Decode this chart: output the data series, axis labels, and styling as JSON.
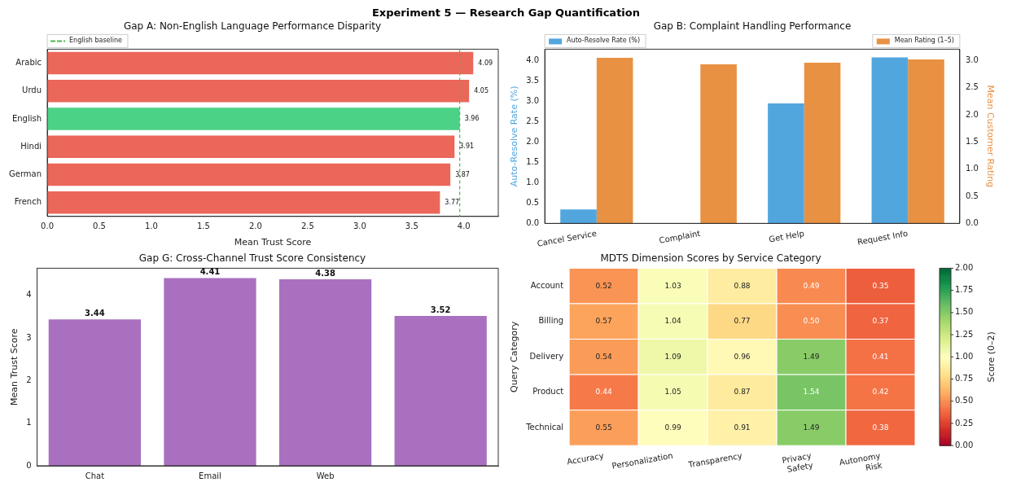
{
  "chart_data": [
    {
      "type": "bar",
      "orientation": "horizontal",
      "title": "Gap A: Non-English Language Performance Disparity",
      "xlabel": "Mean Trust Score",
      "annotations": [
        "Experiment 5 — Research Gap Quantification"
      ],
      "categories": [
        "Arabic",
        "Urdu",
        "English",
        "Hindi",
        "German",
        "French"
      ],
      "values": [
        4.09,
        4.05,
        3.96,
        3.91,
        3.87,
        3.77
      ],
      "colors": [
        "#eb6759",
        "#eb6759",
        "#4cd287",
        "#eb6759",
        "#eb6759",
        "#eb6759"
      ],
      "xlim": [
        0,
        4.33
      ],
      "xticks": [
        {
          "value": 0,
          "label": "0.0"
        },
        0.5,
        {
          "value": 1,
          "label": "1.0"
        },
        1.5,
        {
          "value": 2,
          "label": "2.0"
        },
        2.5,
        {
          "value": 3,
          "label": "3.0"
        },
        3.5,
        {
          "value": 4,
          "label": "4.0"
        }
      ],
      "ref_lines": [
        {
          "axis": "x",
          "value": 3.96,
          "label": "English baseline",
          "color": "#4cb84c",
          "line_style": "dashed"
        }
      ],
      "legend": "top left",
      "data_labels": true
    },
    {
      "type": "bar",
      "title": "Gap B: Complaint Handling Performance",
      "ylabel": "Auto-Resolve Rate (%)",
      "y2label": "Mean Customer Rating",
      "categories": [
        "Cancel Service",
        "Complaint",
        "Get Help",
        "Request Info"
      ],
      "series": [
        {
          "name": "Auto-Resolve Rate (%)",
          "color": "#52a6de",
          "values": [
            0.34,
            0,
            2.95,
            4.08
          ]
        },
        {
          "name": "Mean Rating (1–5)",
          "color": "#e89142",
          "axis": "y2",
          "values": [
            3.05,
            2.93,
            2.96,
            3.02
          ]
        }
      ],
      "ylim": [
        0,
        4.28
      ],
      "yticks": [
        {
          "value": 0,
          "label": "0.0"
        },
        0.5,
        {
          "value": 1,
          "label": "1.0"
        },
        1.5,
        {
          "value": 2,
          "label": "2.0"
        },
        2.5,
        {
          "value": 3,
          "label": "3.0"
        },
        3.5,
        {
          "value": 4,
          "label": "4.0"
        }
      ],
      "y2lim": [
        0,
        3.21
      ],
      "y2ticks": [
        {
          "value": 0,
          "label": "0.0"
        },
        0.5,
        {
          "value": 1,
          "label": "1.0"
        },
        1.5,
        {
          "value": 2,
          "label": "2.0"
        },
        2.5,
        {
          "value": 3,
          "label": "3.0"
        }
      ],
      "legend": "top"
    },
    {
      "type": "bar",
      "title": "Gap G: Cross-Channel Trust Score Consistency",
      "ylabel": "Mean Trust Score",
      "categories": [
        "Chat",
        "Email",
        "Web",
        null
      ],
      "values": [
        3.44,
        4.41,
        4.38,
        3.52
      ],
      "color": "#a970c0",
      "ylim": [
        0,
        4.64
      ],
      "yticks": [
        0,
        1,
        2,
        3,
        4
      ],
      "data_labels": true
    },
    {
      "type": "heatmap",
      "title": "MDTS Dimension Scores by Service Category",
      "ylabel": "Query Category",
      "clabel": "Score (0–2)",
      "categories": [
        "Accuracy",
        "Personalization",
        "Transparency",
        "Privacy\nSafety",
        "Autonomy\nRisk"
      ],
      "y_categories": [
        "Account",
        "Billing",
        "Delivery",
        "Product",
        "Technical"
      ],
      "cells": [
        [
          0.52,
          1.03,
          0.88,
          0.49,
          0.35
        ],
        [
          0.57,
          1.04,
          0.77,
          0.5,
          0.37
        ],
        [
          0.54,
          1.09,
          0.96,
          1.49,
          0.41
        ],
        [
          0.44,
          1.05,
          0.87,
          1.54,
          0.42
        ],
        [
          0.55,
          0.99,
          0.91,
          1.49,
          0.38
        ]
      ],
      "cell_labels": [
        [
          "0.52",
          "1.03",
          "0.88",
          "0.49",
          "0.35"
        ],
        [
          "0.57",
          "1.04",
          "0.77",
          "0.50",
          "0.37"
        ],
        [
          "0.54",
          "1.09",
          "0.96",
          "1.49",
          "0.41"
        ],
        [
          "0.44",
          "1.05",
          "0.87",
          "1.54",
          "0.42"
        ],
        [
          "0.55",
          "0.99",
          "0.91",
          "1.49",
          "0.38"
        ]
      ],
      "clim": [
        0,
        2
      ],
      "cticks": [
        {
          "value": 0,
          "label": "0.00"
        },
        {
          "value": 0.25,
          "label": "0.25"
        },
        {
          "value": 0.5,
          "label": "0.50"
        },
        {
          "value": 0.75,
          "label": "0.75"
        },
        {
          "value": 1,
          "label": "1.00"
        },
        {
          "value": 1.25,
          "label": "1.25"
        },
        {
          "value": 1.5,
          "label": "1.50"
        },
        {
          "value": 1.75,
          "label": "1.75"
        },
        {
          "value": 2,
          "label": "2.00"
        }
      ]
    }
  ]
}
